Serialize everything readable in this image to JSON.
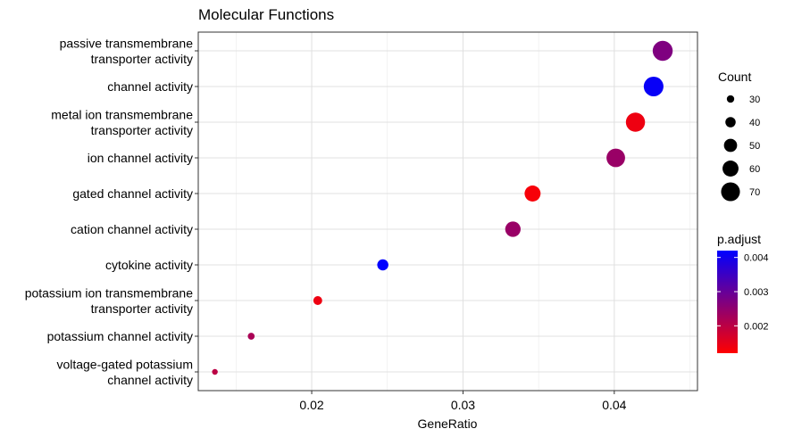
{
  "chart_data": {
    "type": "scatter",
    "title": "Molecular Functions",
    "xlabel": "GeneRatio",
    "ylabel": "",
    "xlim": [
      0.0125,
      0.0455
    ],
    "xticks": [
      0.02,
      0.03,
      0.04
    ],
    "xtick_labels": [
      "0.02",
      "0.03",
      "0.04"
    ],
    "grid": true,
    "categories": [
      [
        "passive transmembrane",
        "transporter activity"
      ],
      [
        "channel activity"
      ],
      [
        "metal ion transmembrane",
        "transporter activity"
      ],
      [
        "ion channel activity"
      ],
      [
        "gated channel activity"
      ],
      [
        "cation channel activity"
      ],
      [
        "cytokine activity"
      ],
      [
        "potassium ion transmembrane",
        "transporter activity"
      ],
      [
        "potassium channel activity"
      ],
      [
        "voltage-gated potassium",
        "channel activity"
      ]
    ],
    "points": [
      {
        "x": 0.0432,
        "count": 74,
        "p_adjust": 0.0027
      },
      {
        "x": 0.0426,
        "count": 73,
        "p_adjust": 0.0041
      },
      {
        "x": 0.0414,
        "count": 71,
        "p_adjust": 0.0014
      },
      {
        "x": 0.0401,
        "count": 69,
        "p_adjust": 0.0024
      },
      {
        "x": 0.0346,
        "count": 60,
        "p_adjust": 0.0013
      },
      {
        "x": 0.0333,
        "count": 58,
        "p_adjust": 0.0024
      },
      {
        "x": 0.0247,
        "count": 43,
        "p_adjust": 0.0043
      },
      {
        "x": 0.0204,
        "count": 35,
        "p_adjust": 0.0014
      },
      {
        "x": 0.016,
        "count": 28,
        "p_adjust": 0.0022
      },
      {
        "x": 0.0136,
        "count": 24,
        "p_adjust": 0.002
      }
    ],
    "size_legend": {
      "title": "Count",
      "values": [
        30,
        40,
        50,
        60,
        70
      ]
    },
    "color_legend": {
      "title": "p.adjust",
      "min": 0.0012,
      "max": 0.0042,
      "ticks": [
        0.004,
        0.003,
        0.002
      ],
      "tick_labels": [
        "0.004",
        "0.003",
        "0.002"
      ],
      "low_color": "#ff0000",
      "high_color": "#0000ff"
    },
    "legend_position": "right"
  }
}
